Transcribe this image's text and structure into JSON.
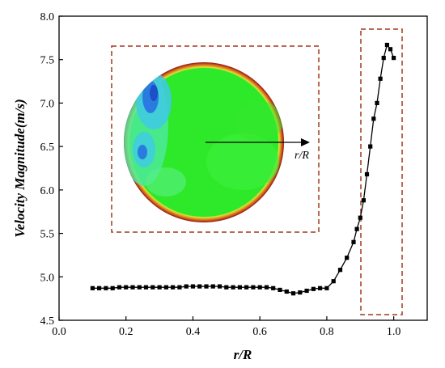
{
  "chart_data": {
    "type": "line",
    "title": "",
    "xlabel": "r/R",
    "ylabel": "Velocity Magnitude(m/s)",
    "xlim": [
      0.0,
      1.1
    ],
    "ylim": [
      4.5,
      8.0
    ],
    "x_ticks": [
      "0.0",
      "0.2",
      "0.4",
      "0.6",
      "0.8",
      "1.0"
    ],
    "y_ticks": [
      "4.5",
      "5.0",
      "5.5",
      "6.0",
      "6.5",
      "7.0",
      "7.5",
      "8.0"
    ],
    "grid": false,
    "legend": "none",
    "marker": "square",
    "line_color": "#000000",
    "series": [
      {
        "x": [
          0.1,
          0.12,
          0.14,
          0.16,
          0.18,
          0.2,
          0.22,
          0.24,
          0.26,
          0.28,
          0.3,
          0.32,
          0.34,
          0.36,
          0.38,
          0.4,
          0.42,
          0.44,
          0.46,
          0.48,
          0.5,
          0.52,
          0.54,
          0.56,
          0.58,
          0.6,
          0.62,
          0.64,
          0.66,
          0.68,
          0.7,
          0.72,
          0.74,
          0.76,
          0.78,
          0.8,
          0.82,
          0.84,
          0.86,
          0.88,
          0.89,
          0.9,
          0.91,
          0.92,
          0.93,
          0.94,
          0.95,
          0.96,
          0.97,
          0.98,
          0.99,
          1.0
        ],
        "y": [
          4.87,
          4.87,
          4.87,
          4.87,
          4.88,
          4.88,
          4.88,
          4.88,
          4.88,
          4.88,
          4.88,
          4.88,
          4.88,
          4.88,
          4.89,
          4.89,
          4.89,
          4.89,
          4.89,
          4.89,
          4.88,
          4.88,
          4.88,
          4.88,
          4.88,
          4.88,
          4.88,
          4.87,
          4.85,
          4.83,
          4.81,
          4.82,
          4.84,
          4.86,
          4.87,
          4.87,
          4.95,
          5.08,
          5.22,
          5.4,
          5.55,
          5.68,
          5.88,
          6.18,
          6.5,
          6.82,
          7.0,
          7.28,
          7.52,
          7.67,
          7.62,
          7.52
        ]
      }
    ],
    "annotations": {
      "inset_label": "r/R"
    }
  },
  "colors": {
    "dashed_box": "#a0381e",
    "contour_green": "#22e81f",
    "contour_edge_red": "#c0301a",
    "contour_blue": "#2a7be0"
  }
}
